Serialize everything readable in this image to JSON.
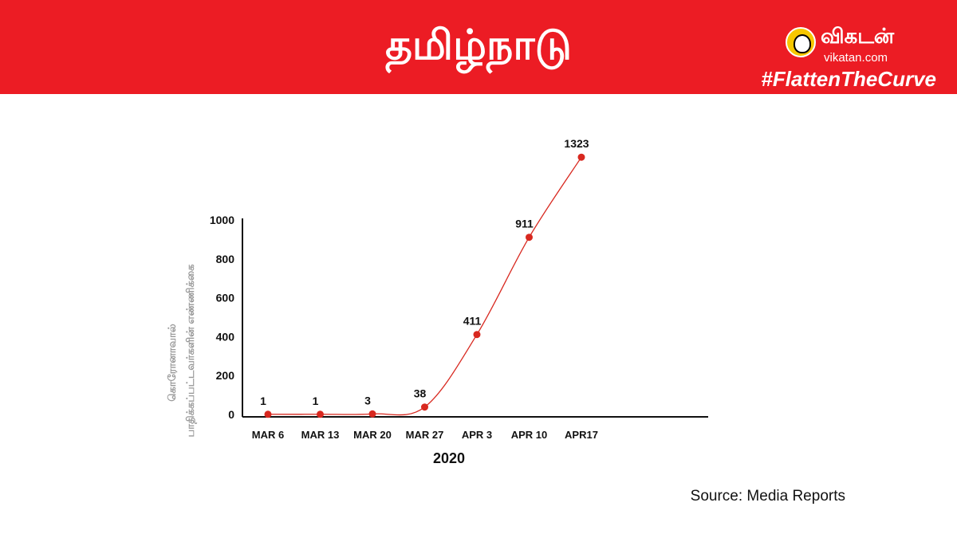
{
  "header": {
    "title": "தமிழ்நாடு",
    "logo_name": "விகடன்",
    "logo_url": "vikatan.com",
    "hashtag": "#FlattenTheCurve",
    "banner_color": "#ec1c24"
  },
  "source": "Source: Media Reports",
  "chart_data": {
    "type": "line",
    "x": [
      "MAR 6",
      "MAR 13",
      "MAR 20",
      "MAR 27",
      "APR 3",
      "APR 10",
      "APR17"
    ],
    "series": [
      {
        "values": [
          1,
          1,
          3,
          38,
          411,
          911,
          1323
        ],
        "color": "#d8281f"
      }
    ],
    "data_labels": [
      "1",
      "1",
      "3",
      "38",
      "411",
      "911",
      "1323"
    ],
    "xlabel": "2020",
    "ylabel": [
      "கொரோனாவால்",
      "பாதிக்கப்பட்டவர்களின் எண்ணிக்கை"
    ],
    "yticks": [
      0,
      200,
      400,
      600,
      800,
      1000
    ],
    "ylim": [
      0,
      1000
    ],
    "grid": false,
    "legend": "none"
  }
}
